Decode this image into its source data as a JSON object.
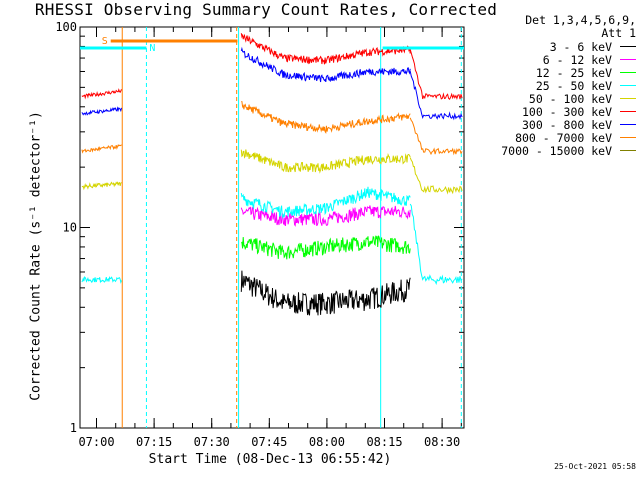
{
  "chart_data": {
    "type": "line",
    "title": "RHESSI Observing Summary Count Rates, Corrected",
    "xlabel": "Start Time (08-Dec-13 06:55:42)",
    "ylabel": "Corrected Count Rate (s⁻¹ detector⁻¹)",
    "y_scale": "log",
    "ylim": [
      1,
      100
    ],
    "y_ticks": [
      1,
      10,
      100
    ],
    "x_range_minutes": [
      0,
      100
    ],
    "x_ticks": [
      {
        "label": "07:00",
        "t": 4.3
      },
      {
        "label": "07:15",
        "t": 19.3
      },
      {
        "label": "07:30",
        "t": 34.3
      },
      {
        "label": "07:45",
        "t": 49.3
      },
      {
        "label": "08:00",
        "t": 64.3
      },
      {
        "label": "08:15",
        "t": 79.3
      },
      {
        "label": "08:30",
        "t": 94.3
      }
    ],
    "legend_header": [
      "Det 1,3,4,5,6,9,",
      "Att 1"
    ],
    "legend_position": "right",
    "series": [
      {
        "name": "3 - 6 keV",
        "color": "#000000",
        "before": null,
        "after": [
          5.5,
          4.2,
          4.2,
          4.4,
          5.0
        ]
      },
      {
        "name": "6 - 12 keV",
        "color": "#ff00ff",
        "before": null,
        "after": [
          12.0,
          11.0,
          11.0,
          12.0,
          12.0
        ]
      },
      {
        "name": "12 - 25 keV",
        "color": "#00ff00",
        "before": null,
        "after": [
          8.5,
          7.5,
          8.0,
          8.5,
          8.0
        ]
      },
      {
        "name": "25 - 50 keV",
        "color": "#00ffff",
        "before": [
          5.5,
          5.5
        ],
        "after": [
          14.0,
          12.0,
          12.5,
          15.0,
          13.5
        ],
        "post": 5.5
      },
      {
        "name": "50 - 100 keV",
        "color": "#d4d400",
        "before": [
          16.0,
          16.5
        ],
        "after": [
          24.0,
          20.0,
          20.0,
          22.0,
          22.0
        ],
        "post": 15.5
      },
      {
        "name": "100 - 300 keV",
        "color": "#ff0000",
        "before": [
          45.0,
          48.0
        ],
        "after": [
          90.0,
          70.0,
          68.0,
          75.0,
          77.0
        ],
        "post": 45.0
      },
      {
        "name": "300 - 800 keV",
        "color": "#0000ff",
        "before": [
          37.0,
          39.0
        ],
        "after": [
          75.0,
          58.0,
          55.0,
          60.0,
          60.0
        ],
        "post": 36.0
      },
      {
        "name": "800 - 7000 keV",
        "color": "#ff8000",
        "before": [
          24.0,
          25.5
        ],
        "after": [
          41.0,
          33.0,
          31.0,
          34.0,
          36.0
        ],
        "post": 24.0
      },
      {
        "name": "7000 - 15000 keV",
        "color": "#808000",
        "before": null,
        "after": null
      }
    ],
    "flags": [
      {
        "label": "S",
        "color": "#ff8000",
        "t_start": 8.0,
        "t_end": 41.0
      },
      {
        "label": "N",
        "color": "#00ffff",
        "t_start": 0.0,
        "t_end": 17.3
      },
      {
        "label": "",
        "color": "#00ffff",
        "t_start": 78.8,
        "t_end": 100.0
      }
    ],
    "vlines": [
      {
        "t": 11.0,
        "color": "#ff8000",
        "style": "solid"
      },
      {
        "t": 17.3,
        "color": "#00ffff",
        "style": "dashed"
      },
      {
        "t": 40.8,
        "color": "#ff8000",
        "style": "dashed"
      },
      {
        "t": 41.3,
        "color": "#00ffff",
        "style": "solid"
      },
      {
        "t": 78.3,
        "color": "#00ffff",
        "style": "solid"
      },
      {
        "t": 99.3,
        "color": "#00ffff",
        "style": "dashed"
      }
    ],
    "grid": false
  },
  "footer_date": "25-Oct-2021 05:58"
}
